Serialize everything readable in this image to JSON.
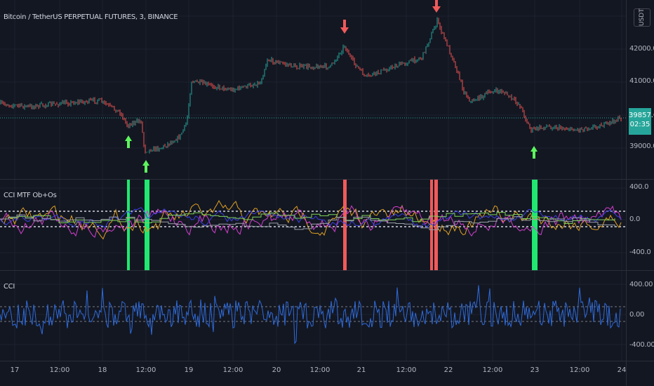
{
  "chart": {
    "title": "Bitcoin / TetherUS PERPETUAL FUTURES, 3, BINANCE",
    "currency": "USDT",
    "price_label": "39857.0",
    "countdown": "02:35",
    "y_labels": [
      "42000.0",
      "41000.0",
      "40000.0",
      "39000.0"
    ],
    "candle_color_up": "#26a69a",
    "candle_color_down": "#ef5350",
    "arrow_up_color": "#5df55d",
    "arrow_down_color": "#f05a5a"
  },
  "mtf": {
    "title": "CCI MTF Ob+Os",
    "y_labels": [
      "400.0",
      "0.0",
      "-400.0"
    ],
    "buy_bar_color": "#20e870",
    "sell_bar_color": "#f05a5a"
  },
  "cci": {
    "title": "CCI",
    "y_labels": [
      "400.00",
      "0.00",
      "-400.00"
    ],
    "line_color": "#2f6bd9"
  },
  "time_axis": [
    "17",
    "12:00",
    "18",
    "12:00",
    "19",
    "12:00",
    "20",
    "12:00",
    "21",
    "12:00",
    "22",
    "12:00",
    "23",
    "12:00",
    "24"
  ]
}
